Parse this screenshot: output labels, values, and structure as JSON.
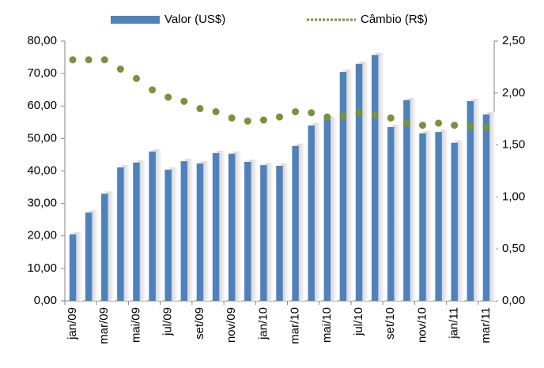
{
  "chart_data": {
    "type": "bar_line",
    "categories": [
      "jan/09",
      null,
      "mar/09",
      null,
      "mai/09",
      null,
      "jul/09",
      null,
      "set/09",
      null,
      "nov/09",
      null,
      "jan/10",
      null,
      "mar/10",
      null,
      "mai/10",
      null,
      "jul/10",
      null,
      "set/10",
      null,
      "nov/10",
      null,
      "jan/11",
      null,
      "mar/11"
    ],
    "series": [
      {
        "name": "Valor (US$)",
        "color": "#4f81bd",
        "type": "bar",
        "values": [
          20.5,
          27.2,
          33.0,
          41.1,
          42.6,
          46.0,
          40.4,
          43.0,
          42.3,
          45.5,
          45.3,
          42.8,
          41.8,
          41.6,
          47.7,
          54.0,
          56.0,
          70.5,
          73.0,
          75.7,
          53.5,
          61.8,
          51.6,
          52.0,
          48.7,
          61.5,
          57.4
        ]
      },
      {
        "name": "Câmbio (R$)",
        "color": "#77933c",
        "type": "line",
        "axis": "y2",
        "values": [
          2.32,
          2.32,
          2.32,
          2.23,
          2.14,
          2.03,
          1.96,
          1.92,
          1.85,
          1.82,
          1.76,
          1.73,
          1.74,
          1.77,
          1.82,
          1.81,
          1.77,
          1.78,
          1.81,
          1.79,
          1.76,
          1.71,
          1.69,
          1.71,
          1.69,
          1.68,
          1.67
        ]
      }
    ],
    "ylim": [
      0,
      80
    ],
    "yticks": [
      {
        "value": 0,
        "label": "0,00"
      },
      {
        "value": 10,
        "label": "10,00"
      },
      {
        "value": 20,
        "label": "20,00"
      },
      {
        "value": 30,
        "label": "30,00"
      },
      {
        "value": 40,
        "label": "40,00"
      },
      {
        "value": 50,
        "label": "50,00"
      },
      {
        "value": 60,
        "label": "60,00"
      },
      {
        "value": 70,
        "label": "70,00"
      },
      {
        "value": 80,
        "label": "80,00"
      }
    ],
    "y2lim": [
      0,
      2.5
    ],
    "y2ticks": [
      {
        "value": 0,
        "label": "0,00"
      },
      {
        "value": 0.5,
        "label": "0,50"
      },
      {
        "value": 1,
        "label": "1,00"
      },
      {
        "value": 1.5,
        "label": "1,50"
      },
      {
        "value": 2,
        "label": "2,00"
      },
      {
        "value": 2.5,
        "label": "2,50"
      }
    ],
    "grid": false
  }
}
